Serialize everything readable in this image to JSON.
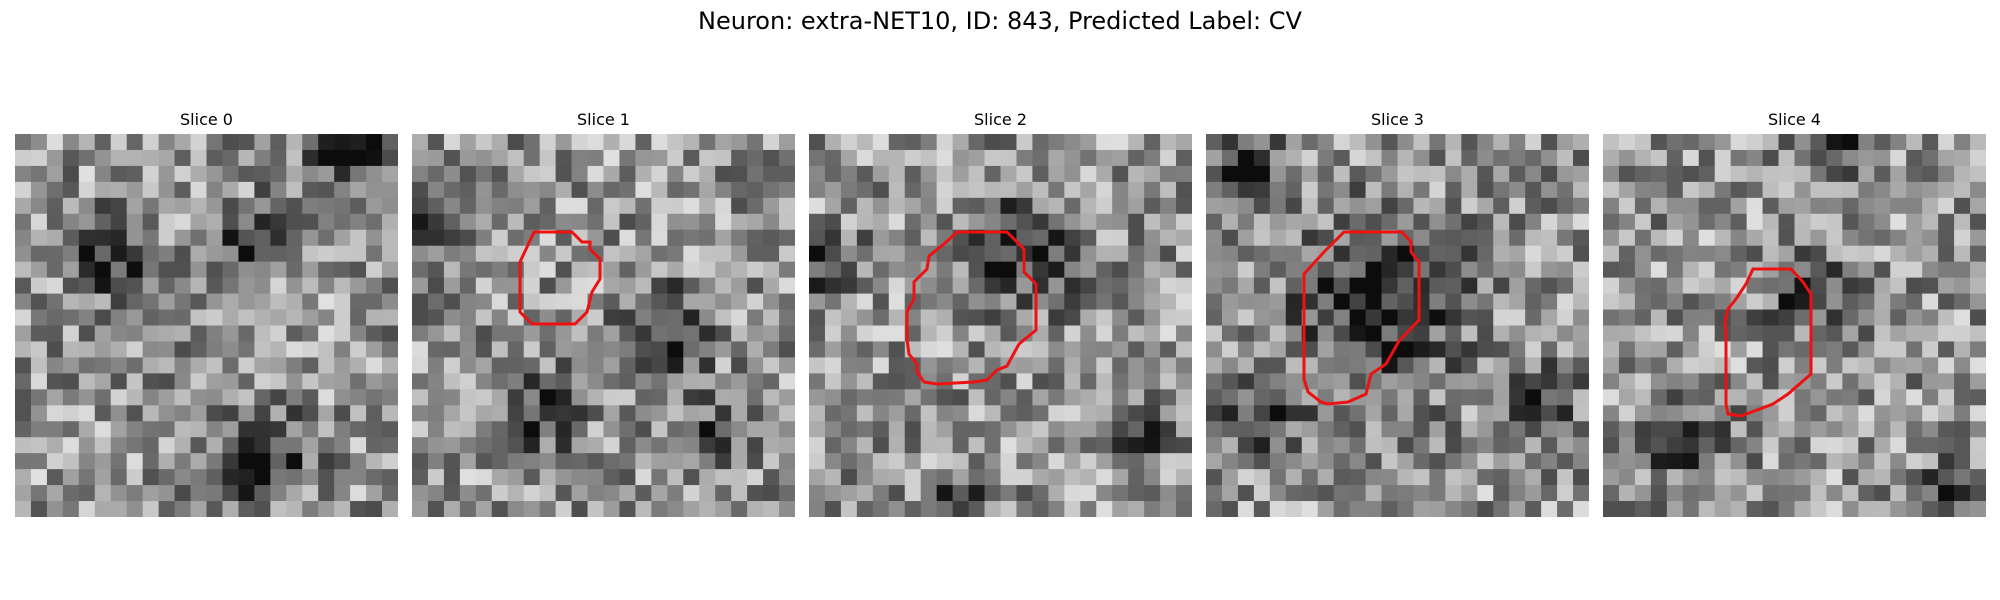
{
  "figure": {
    "title": "Neuron: extra-NET10, ID: 843, Predicted Label: CV"
  },
  "contour_color": "#ee1111",
  "grid_size": 24,
  "panels": [
    {
      "title": "Slice 0",
      "has_contour": false,
      "dark_spots": [
        [
          0.88,
          0.05,
          0.12
        ],
        [
          0.25,
          0.32,
          0.1
        ],
        [
          0.62,
          0.28,
          0.09
        ],
        [
          0.65,
          0.85,
          0.12
        ]
      ]
    },
    {
      "title": "Slice 1",
      "has_contour": true,
      "dark_spots": [
        [
          0.66,
          0.52,
          0.12
        ],
        [
          0.35,
          0.72,
          0.1
        ],
        [
          0.05,
          0.25,
          0.08
        ],
        [
          0.77,
          0.8,
          0.08
        ]
      ]
    },
    {
      "title": "Slice 2",
      "has_contour": true,
      "dark_spots": [
        [
          0.55,
          0.3,
          0.15
        ],
        [
          0.05,
          0.33,
          0.08
        ],
        [
          0.85,
          0.78,
          0.08
        ],
        [
          0.4,
          0.98,
          0.08
        ]
      ]
    },
    {
      "title": "Slice 3",
      "has_contour": true,
      "dark_spots": [
        [
          0.45,
          0.45,
          0.22
        ],
        [
          0.1,
          0.08,
          0.1
        ],
        [
          0.15,
          0.73,
          0.1
        ],
        [
          0.88,
          0.68,
          0.08
        ]
      ]
    },
    {
      "title": "Slice 4",
      "has_contour": true,
      "dark_spots": [
        [
          0.6,
          0.03,
          0.1
        ],
        [
          0.53,
          0.42,
          0.1
        ],
        [
          0.22,
          0.8,
          0.1
        ],
        [
          0.9,
          0.95,
          0.08
        ]
      ]
    }
  ]
}
